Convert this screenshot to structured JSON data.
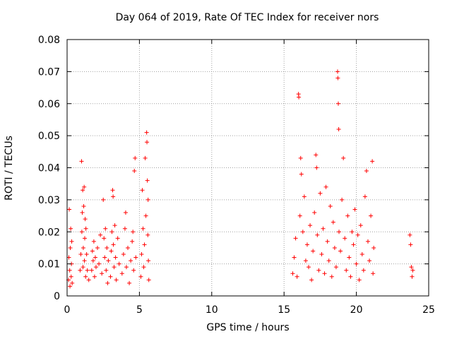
{
  "chart_data": {
    "type": "scatter",
    "title": "Day 064 of 2019, Rate Of TEC Index for receiver nors",
    "xlabel": "GPS time / hours",
    "ylabel": "ROTI / TECUs",
    "xlim": [
      0,
      25
    ],
    "ylim": [
      0,
      0.08
    ],
    "xticks": [
      0,
      5,
      10,
      15,
      20,
      25
    ],
    "xtick_labels": [
      "0",
      "5",
      "10",
      "15",
      "20",
      "25"
    ],
    "yticks": [
      0,
      0.01,
      0.02,
      0.03,
      0.04,
      0.05,
      0.06,
      0.07,
      0.08
    ],
    "ytick_labels": [
      "0",
      "0.01",
      "0.02",
      "0.03",
      "0.04",
      "0.05",
      "0.06",
      "0.07",
      "0.08"
    ],
    "grid": true,
    "marker": "+",
    "color": "#ff0000",
    "series": [
      {
        "name": "ROTI",
        "points": [
          [
            0.1,
            0.005
          ],
          [
            0.12,
            0.012
          ],
          [
            0.15,
            0.027
          ],
          [
            0.18,
            0.008
          ],
          [
            0.2,
            0.003
          ],
          [
            0.22,
            0.015
          ],
          [
            0.25,
            0.021
          ],
          [
            0.28,
            0.006
          ],
          [
            0.3,
            0.01
          ],
          [
            0.32,
            0.017
          ],
          [
            0.35,
            0.004
          ],
          [
            0.9,
            0.008
          ],
          [
            0.95,
            0.013
          ],
          [
            1.0,
            0.042
          ],
          [
            1.02,
            0.02
          ],
          [
            1.05,
            0.026
          ],
          [
            1.08,
            0.033
          ],
          [
            1.1,
            0.009
          ],
          [
            1.12,
            0.015
          ],
          [
            1.15,
            0.028
          ],
          [
            1.18,
            0.034
          ],
          [
            1.2,
            0.011
          ],
          [
            1.22,
            0.018
          ],
          [
            1.25,
            0.024
          ],
          [
            1.28,
            0.006
          ],
          [
            1.3,
            0.021
          ],
          [
            1.35,
            0.013
          ],
          [
            1.4,
            0.008
          ],
          [
            1.5,
            0.005
          ],
          [
            1.7,
            0.008
          ],
          [
            1.75,
            0.014
          ],
          [
            1.8,
            0.011
          ],
          [
            1.85,
            0.017
          ],
          [
            1.9,
            0.006
          ],
          [
            1.95,
            0.012
          ],
          [
            2.0,
            0.009
          ],
          [
            2.1,
            0.015
          ],
          [
            2.2,
            0.01
          ],
          [
            2.3,
            0.019
          ],
          [
            2.4,
            0.007
          ],
          [
            2.5,
            0.03
          ],
          [
            2.55,
            0.018
          ],
          [
            2.6,
            0.012
          ],
          [
            2.65,
            0.021
          ],
          [
            2.7,
            0.008
          ],
          [
            2.75,
            0.015
          ],
          [
            2.8,
            0.004
          ],
          [
            2.85,
            0.011
          ],
          [
            3.0,
            0.006
          ],
          [
            3.05,
            0.014
          ],
          [
            3.1,
            0.02
          ],
          [
            3.15,
            0.033
          ],
          [
            3.18,
            0.031
          ],
          [
            3.2,
            0.016
          ],
          [
            3.25,
            0.009
          ],
          [
            3.3,
            0.022
          ],
          [
            3.35,
            0.012
          ],
          [
            3.4,
            0.005
          ],
          [
            3.5,
            0.018
          ],
          [
            3.6,
            0.01
          ],
          [
            3.8,
            0.007
          ],
          [
            3.9,
            0.013
          ],
          [
            4.0,
            0.021
          ],
          [
            4.05,
            0.026
          ],
          [
            4.1,
            0.009
          ],
          [
            4.2,
            0.015
          ],
          [
            4.3,
            0.004
          ],
          [
            4.4,
            0.011
          ],
          [
            4.5,
            0.017
          ],
          [
            4.55,
            0.02
          ],
          [
            4.6,
            0.008
          ],
          [
            4.65,
            0.039
          ],
          [
            4.7,
            0.043
          ],
          [
            4.75,
            0.012
          ],
          [
            5.1,
            0.006
          ],
          [
            5.15,
            0.013
          ],
          [
            5.2,
            0.033
          ],
          [
            5.25,
            0.021
          ],
          [
            5.3,
            0.009
          ],
          [
            5.35,
            0.016
          ],
          [
            5.4,
            0.043
          ],
          [
            5.45,
            0.025
          ],
          [
            5.5,
            0.051
          ],
          [
            5.52,
            0.048
          ],
          [
            5.55,
            0.036
          ],
          [
            5.58,
            0.019
          ],
          [
            5.6,
            0.03
          ],
          [
            5.62,
            0.011
          ],
          [
            5.65,
            0.005
          ],
          [
            15.6,
            0.007
          ],
          [
            15.7,
            0.012
          ],
          [
            15.8,
            0.018
          ],
          [
            15.9,
            0.006
          ],
          [
            16.0,
            0.063
          ],
          [
            16.02,
            0.062
          ],
          [
            16.1,
            0.025
          ],
          [
            16.15,
            0.043
          ],
          [
            16.2,
            0.038
          ],
          [
            16.3,
            0.02
          ],
          [
            16.4,
            0.031
          ],
          [
            16.5,
            0.011
          ],
          [
            16.6,
            0.016
          ],
          [
            16.7,
            0.009
          ],
          [
            16.8,
            0.022
          ],
          [
            16.9,
            0.005
          ],
          [
            17.0,
            0.014
          ],
          [
            17.1,
            0.026
          ],
          [
            17.2,
            0.044
          ],
          [
            17.25,
            0.04
          ],
          [
            17.3,
            0.019
          ],
          [
            17.4,
            0.008
          ],
          [
            17.5,
            0.032
          ],
          [
            17.6,
            0.013
          ],
          [
            17.7,
            0.021
          ],
          [
            17.8,
            0.007
          ],
          [
            17.9,
            0.034
          ],
          [
            18.0,
            0.017
          ],
          [
            18.1,
            0.011
          ],
          [
            18.2,
            0.028
          ],
          [
            18.3,
            0.006
          ],
          [
            18.4,
            0.023
          ],
          [
            18.5,
            0.015
          ],
          [
            18.6,
            0.009
          ],
          [
            18.7,
            0.07
          ],
          [
            18.72,
            0.068
          ],
          [
            18.75,
            0.06
          ],
          [
            18.78,
            0.052
          ],
          [
            18.8,
            0.02
          ],
          [
            18.9,
            0.014
          ],
          [
            19.0,
            0.03
          ],
          [
            19.1,
            0.043
          ],
          [
            19.2,
            0.018
          ],
          [
            19.3,
            0.008
          ],
          [
            19.4,
            0.025
          ],
          [
            19.5,
            0.012
          ],
          [
            19.6,
            0.006
          ],
          [
            19.7,
            0.02
          ],
          [
            19.8,
            0.016
          ],
          [
            19.9,
            0.027
          ],
          [
            20.0,
            0.01
          ],
          [
            20.1,
            0.019
          ],
          [
            20.2,
            0.005
          ],
          [
            20.3,
            0.022
          ],
          [
            20.4,
            0.013
          ],
          [
            20.5,
            0.008
          ],
          [
            20.6,
            0.031
          ],
          [
            20.7,
            0.039
          ],
          [
            20.8,
            0.017
          ],
          [
            20.9,
            0.011
          ],
          [
            21.0,
            0.025
          ],
          [
            21.1,
            0.042
          ],
          [
            21.15,
            0.007
          ],
          [
            21.2,
            0.015
          ],
          [
            23.7,
            0.019
          ],
          [
            23.75,
            0.016
          ],
          [
            23.8,
            0.009
          ],
          [
            23.85,
            0.006
          ],
          [
            23.9,
            0.008
          ]
        ]
      }
    ]
  }
}
